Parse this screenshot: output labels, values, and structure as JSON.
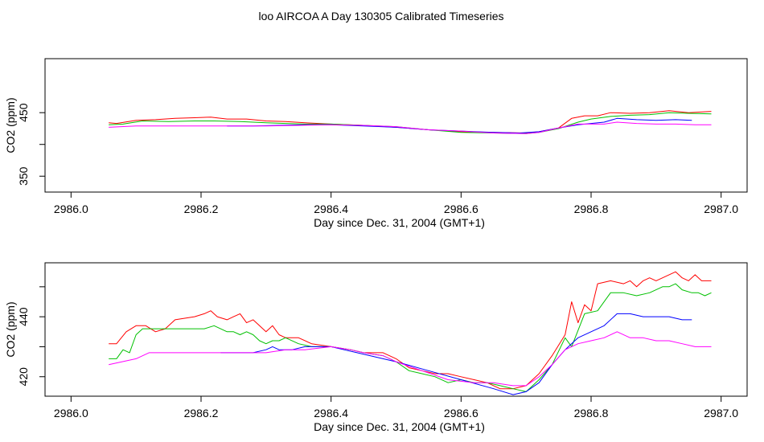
{
  "figure_title": "loo AIRCOA A  Day 130305  Calibrated Timeseries",
  "chart_data": [
    {
      "type": "line",
      "title": "",
      "xlabel": "Day since Dec. 31, 2004 (GMT+1)",
      "ylabel": "CO2 (ppm)",
      "xlim": [
        2985.96,
        2987.04
      ],
      "ylim": [
        325,
        535
      ],
      "xticks": [
        2986.0,
        2986.2,
        2986.4,
        2986.6,
        2986.8,
        2987.0
      ],
      "xtick_labels": [
        "2986.0",
        "2986.2",
        "2986.4",
        "2986.6",
        "2986.8",
        "2987.0"
      ],
      "yticks": [
        350,
        400,
        450
      ],
      "ytick_labels": [
        "350",
        "",
        "450"
      ],
      "grid": false,
      "series": [
        {
          "color": "#ff0000",
          "x": [
            2986.058,
            2986.07,
            2986.1,
            2986.13,
            2986.16,
            2986.19,
            2986.215,
            2986.24,
            2986.27,
            2986.3,
            2986.33,
            2986.36,
            2986.4,
            2986.45,
            2986.5,
            2986.55,
            2986.6,
            2986.65,
            2986.7,
            2986.72,
            2986.75,
            2986.77,
            2986.79,
            2986.81,
            2986.83,
            2986.86,
            2986.89,
            2986.92,
            2986.95,
            2986.985
          ],
          "y": [
            434,
            433,
            438,
            439,
            441,
            442,
            443,
            440,
            440,
            437,
            436,
            434,
            432,
            430,
            427,
            423,
            420,
            419,
            418,
            420,
            426,
            441,
            445,
            445,
            450,
            449,
            450,
            453,
            450,
            452
          ]
        },
        {
          "color": "#00c000",
          "x": [
            2986.058,
            2986.08,
            2986.11,
            2986.15,
            2986.19,
            2986.22,
            2986.26,
            2986.3,
            2986.33,
            2986.36,
            2986.4,
            2986.45,
            2986.5,
            2986.55,
            2986.6,
            2986.65,
            2986.7,
            2986.72,
            2986.75,
            2986.78,
            2986.8,
            2986.83,
            2986.86,
            2986.89,
            2986.92,
            2986.95,
            2986.985
          ],
          "y": [
            431,
            432,
            437,
            436,
            437,
            437,
            436,
            434,
            433,
            432,
            432,
            430,
            428,
            423,
            419,
            418,
            417,
            419,
            425,
            435,
            440,
            444,
            446,
            447,
            450,
            449,
            448
          ]
        },
        {
          "color": "#0000ff",
          "x": [
            2986.24,
            2986.28,
            2986.32,
            2986.36,
            2986.4,
            2986.45,
            2986.5,
            2986.55,
            2986.6,
            2986.65,
            2986.69,
            2986.72,
            2986.75,
            2986.78,
            2986.8,
            2986.82,
            2986.84,
            2986.87,
            2986.9,
            2986.93,
            2986.955
          ],
          "y": [
            429,
            429,
            430,
            431,
            431,
            429,
            427,
            423,
            421,
            419,
            418,
            420,
            426,
            431,
            433,
            435,
            441,
            439,
            438,
            439,
            438
          ]
        },
        {
          "color": "#ff00ff",
          "x": [
            2986.058,
            2986.1,
            2986.15,
            2986.2,
            2986.25,
            2986.3,
            2986.35,
            2986.4,
            2986.45,
            2986.5,
            2986.55,
            2986.6,
            2986.65,
            2986.7,
            2986.72,
            2986.75,
            2986.78,
            2986.8,
            2986.82,
            2986.84,
            2986.87,
            2986.9,
            2986.93,
            2986.96,
            2986.985
          ],
          "y": [
            427,
            429,
            429,
            429,
            429,
            429,
            430,
            431,
            430,
            428,
            423,
            421,
            418,
            417,
            419,
            426,
            432,
            432,
            432,
            435,
            433,
            432,
            432,
            431,
            431
          ]
        }
      ]
    },
    {
      "type": "line",
      "title": "",
      "xlabel": "Day since Dec. 31, 2004 (GMT+1)",
      "ylabel": "CO2 (ppm)",
      "xlim": [
        2985.96,
        2987.04
      ],
      "ylim": [
        413.5,
        458
      ],
      "xticks": [
        2986.0,
        2986.2,
        2986.4,
        2986.6,
        2986.8,
        2987.0
      ],
      "xtick_labels": [
        "2986.0",
        "2986.2",
        "2986.4",
        "2986.6",
        "2986.8",
        "2987.0"
      ],
      "yticks": [
        420,
        430,
        440,
        450
      ],
      "ytick_labels": [
        "420",
        "",
        "440",
        ""
      ],
      "grid": false,
      "series": [
        {
          "color": "#ff0000",
          "x": [
            2986.058,
            2986.07,
            2986.085,
            2986.1,
            2986.115,
            2986.13,
            2986.145,
            2986.16,
            2986.19,
            2986.205,
            2986.215,
            2986.225,
            2986.24,
            2986.25,
            2986.26,
            2986.27,
            2986.28,
            2986.29,
            2986.3,
            2986.31,
            2986.32,
            2986.33,
            2986.35,
            2986.37,
            2986.4,
            2986.43,
            2986.45,
            2986.48,
            2986.5,
            2986.52,
            2986.54,
            2986.56,
            2986.58,
            2986.6,
            2986.62,
            2986.64,
            2986.66,
            2986.68,
            2986.7,
            2986.72,
            2986.74,
            2986.76,
            2986.77,
            2986.78,
            2986.79,
            2986.8,
            2986.81,
            2986.83,
            2986.85,
            2986.86,
            2986.87,
            2986.88,
            2986.89,
            2986.9,
            2986.92,
            2986.93,
            2986.94,
            2986.95,
            2986.96,
            2986.97,
            2986.985
          ],
          "y": [
            431,
            431,
            435,
            437,
            437,
            435,
            436,
            439,
            440,
            441,
            442,
            440,
            439,
            440,
            441,
            438,
            439,
            437,
            435,
            437,
            434,
            433,
            433,
            431,
            430,
            429,
            428,
            428,
            426,
            423,
            422,
            421,
            421,
            420,
            419,
            418,
            416,
            416,
            417,
            421,
            427,
            434,
            445,
            438,
            444,
            442,
            451,
            452,
            451,
            452,
            450,
            452,
            453,
            452,
            454,
            455,
            453,
            452,
            454,
            452,
            452
          ]
        },
        {
          "color": "#00c000",
          "x": [
            2986.058,
            2986.07,
            2986.08,
            2986.09,
            2986.1,
            2986.11,
            2986.13,
            2986.16,
            2986.19,
            2986.205,
            2986.22,
            2986.24,
            2986.25,
            2986.26,
            2986.27,
            2986.28,
            2986.29,
            2986.3,
            2986.31,
            2986.32,
            2986.33,
            2986.35,
            2986.37,
            2986.4,
            2986.43,
            2986.45,
            2986.48,
            2986.5,
            2986.52,
            2986.54,
            2986.56,
            2986.58,
            2986.6,
            2986.62,
            2986.64,
            2986.66,
            2986.68,
            2986.7,
            2986.72,
            2986.74,
            2986.76,
            2986.77,
            2986.79,
            2986.81,
            2986.83,
            2986.85,
            2986.87,
            2986.89,
            2986.91,
            2986.92,
            2986.93,
            2986.94,
            2986.955,
            2986.965,
            2986.975,
            2986.985
          ],
          "y": [
            426,
            426,
            429,
            428,
            434,
            436,
            436,
            436,
            436,
            436,
            437,
            435,
            435,
            434,
            435,
            434,
            432,
            431,
            432,
            432,
            433,
            431,
            430,
            430,
            429,
            428,
            427,
            425,
            422,
            421,
            420,
            418,
            419,
            418,
            418,
            417,
            416,
            415,
            419,
            424,
            433,
            430,
            441,
            442,
            448,
            448,
            447,
            448,
            450,
            450,
            451,
            449,
            448,
            448,
            447,
            448
          ]
        },
        {
          "color": "#0000ff",
          "x": [
            2986.23,
            2986.26,
            2986.28,
            2986.3,
            2986.31,
            2986.32,
            2986.34,
            2986.36,
            2986.38,
            2986.4,
            2986.42,
            2986.44,
            2986.46,
            2986.48,
            2986.5,
            2986.55,
            2986.6,
            2986.65,
            2986.68,
            2986.7,
            2986.72,
            2986.74,
            2986.76,
            2986.78,
            2986.8,
            2986.82,
            2986.84,
            2986.86,
            2986.88,
            2986.9,
            2986.92,
            2986.94,
            2986.955
          ],
          "y": [
            428,
            428,
            428,
            429,
            430,
            429,
            429,
            430,
            430,
            430,
            429,
            428,
            427,
            426,
            425,
            422,
            419,
            416,
            414,
            415,
            418,
            424,
            429,
            433,
            435,
            437,
            441,
            441,
            440,
            440,
            440,
            439,
            439
          ]
        },
        {
          "color": "#ff00ff",
          "x": [
            2986.058,
            2986.1,
            2986.12,
            2986.15,
            2986.2,
            2986.25,
            2986.28,
            2986.3,
            2986.33,
            2986.36,
            2986.4,
            2986.43,
            2986.45,
            2986.48,
            2986.5,
            2986.54,
            2986.58,
            2986.62,
            2986.65,
            2986.68,
            2986.7,
            2986.72,
            2986.74,
            2986.76,
            2986.78,
            2986.8,
            2986.82,
            2986.84,
            2986.86,
            2986.88,
            2986.9,
            2986.92,
            2986.94,
            2986.96,
            2986.985
          ],
          "y": [
            424,
            426,
            428,
            428,
            428,
            428,
            428,
            428,
            429,
            429,
            430,
            429,
            428,
            427,
            425,
            422,
            419,
            418,
            418,
            417,
            417,
            420,
            424,
            429,
            431,
            432,
            433,
            435,
            433,
            433,
            432,
            432,
            431,
            430,
            430
          ]
        }
      ]
    }
  ]
}
